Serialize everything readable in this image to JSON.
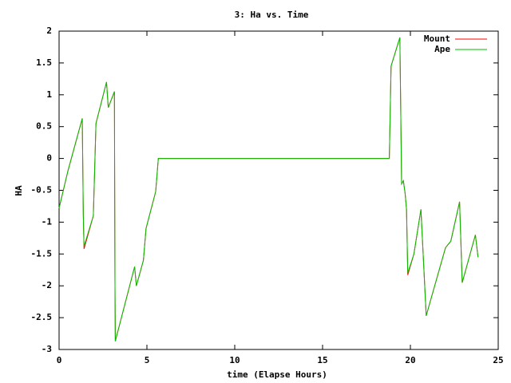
{
  "chart_data": {
    "type": "line",
    "title": "3: Ha vs. Time",
    "x_label": "time (Elapse Hours)",
    "y_label": "HA",
    "x": [
      0,
      0.5,
      1.32,
      1.38,
      1.42,
      1.95,
      2.1,
      2.7,
      2.8,
      3.15,
      3.18,
      3.2,
      4.3,
      4.4,
      4.8,
      4.95,
      5.5,
      5.65,
      18.8,
      18.9,
      19.4,
      19.5,
      19.6,
      19.7,
      19.78,
      19.85,
      20.2,
      20.6,
      20.9,
      22.0,
      22.3,
      22.8,
      22.95,
      23.7,
      23.85
    ],
    "series": [
      {
        "name": "Mount",
        "color": "#ff0000",
        "values": [
          -0.78,
          -0.2,
          0.63,
          -0.9,
          -1.42,
          -0.9,
          0.55,
          1.2,
          0.8,
          1.05,
          -1.9,
          -2.87,
          -1.7,
          -2.0,
          -1.6,
          -1.1,
          -0.52,
          0,
          0,
          1.45,
          1.9,
          -0.4,
          -0.35,
          -0.55,
          -0.8,
          -1.83,
          -1.5,
          -0.8,
          -2.47,
          -1.4,
          -1.3,
          -0.68,
          -1.95,
          -1.2,
          -1.55
        ]
      },
      {
        "name": "Ape",
        "color": "#00c000",
        "values": [
          -0.78,
          -0.2,
          0.63,
          -0.9,
          -1.38,
          -0.9,
          0.55,
          1.2,
          0.8,
          1.05,
          -1.9,
          -2.87,
          -1.7,
          -2.0,
          -1.6,
          -1.1,
          -0.52,
          0,
          0,
          1.45,
          1.9,
          -0.4,
          -0.35,
          -0.55,
          -0.8,
          -1.8,
          -1.5,
          -0.8,
          -2.47,
          -1.4,
          -1.3,
          -0.68,
          -1.95,
          -1.2,
          -1.55
        ]
      }
    ],
    "xlim": [
      0,
      25
    ],
    "xticks": [
      0,
      5,
      10,
      15,
      20,
      25
    ],
    "ylim": [
      -3,
      2
    ],
    "yticks": [
      -3,
      -2.5,
      -2,
      -1.5,
      -1,
      -0.5,
      0,
      0.5,
      1,
      1.5,
      2
    ],
    "legend": "top-right"
  }
}
